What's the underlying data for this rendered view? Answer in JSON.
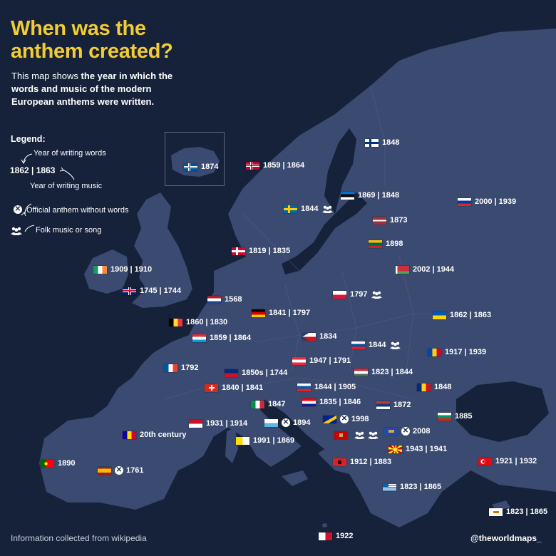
{
  "title_line1": "When was the",
  "title_line2": "anthem created?",
  "subtitle_prefix": "This map shows ",
  "subtitle_bold": "the year in which the words and music of the modern European anthems were written.",
  "legend": {
    "heading": "Legend:",
    "words_text": "Year of writing words",
    "example": "1862 | 1863",
    "music_text": "Year of writing music",
    "no_words_text": "Official anthem without words",
    "folk_text": "Folk music or song"
  },
  "countries": [
    {
      "flag": "iceland",
      "text": "1874"
    },
    {
      "flag": "norway",
      "text": "1859 | 1864"
    },
    {
      "flag": "finland",
      "text": "1848"
    },
    {
      "flag": "estonia",
      "text": "1869 | 1848"
    },
    {
      "flag": "russia",
      "text": "2000 | 1939"
    },
    {
      "flag": "sweden",
      "text": "1844",
      "folk": true
    },
    {
      "flag": "latvia",
      "text": "1873"
    },
    {
      "flag": "lithuania",
      "text": "1898"
    },
    {
      "flag": "denmark",
      "text": "1819 | 1835"
    },
    {
      "flag": "belarus",
      "text": "2002 | 1944"
    },
    {
      "flag": "ireland",
      "text": "1909 | 1910"
    },
    {
      "flag": "uk",
      "text": "1745 | 1744"
    },
    {
      "flag": "netherlands",
      "text": "1568"
    },
    {
      "flag": "poland",
      "text": "1797",
      "folk": true
    },
    {
      "flag": "germany",
      "text": "1841 | 1797"
    },
    {
      "flag": "ukraine",
      "text": "1862 | 1863"
    },
    {
      "flag": "belgium",
      "text": "1860 | 1830"
    },
    {
      "flag": "luxembourg",
      "text": "1859 | 1864"
    },
    {
      "flag": "czechia",
      "text": "1834"
    },
    {
      "flag": "slovakia",
      "text": "1844",
      "folk": true
    },
    {
      "flag": "moldova",
      "text": "1917 | 1939"
    },
    {
      "flag": "france",
      "text": "1792"
    },
    {
      "flag": "austria",
      "text": "1947 | 1791"
    },
    {
      "flag": "liechtenstein",
      "text": "1850s | 1744"
    },
    {
      "flag": "hungary",
      "text": "1823 | 1844"
    },
    {
      "flag": "switzerland",
      "text": "1840 | 1841"
    },
    {
      "flag": "slovenia",
      "text": "1844 | 1905"
    },
    {
      "flag": "romania",
      "text": "1848"
    },
    {
      "flag": "italy",
      "text": "1847"
    },
    {
      "flag": "croatia",
      "text": "1835 | 1846"
    },
    {
      "flag": "serbia",
      "text": "1872"
    },
    {
      "flag": "bulgaria",
      "text": "1885"
    },
    {
      "flag": "monaco",
      "text": "1931 | 1914"
    },
    {
      "flag": "sanmarino",
      "text": "1894",
      "no_words": true
    },
    {
      "flag": "bosnia",
      "text": "1998",
      "no_words": true
    },
    {
      "flag": "andorra",
      "text": "20th century"
    },
    {
      "flag": "vatican",
      "text": "1991 | 1869"
    },
    {
      "flag": "montenegro",
      "text": "",
      "folk": true,
      "folk2": true
    },
    {
      "flag": "kosovo",
      "text": "2008",
      "no_words": true
    },
    {
      "flag": "northmacedonia",
      "text": "1943 | 1941"
    },
    {
      "flag": "portugal",
      "text": "1890"
    },
    {
      "flag": "spain",
      "text": "1761",
      "no_words": true
    },
    {
      "flag": "albania",
      "text": "1912 | 1883"
    },
    {
      "flag": "turkey",
      "text": "1921 | 1932"
    },
    {
      "flag": "greece",
      "text": "1823 | 1865"
    },
    {
      "flag": "cyprus",
      "text": "1823 | 1865"
    },
    {
      "flag": "malta",
      "text": "1922"
    }
  ],
  "footer_left": "Information collected from wikipedia",
  "footer_right": "@theworldmaps_",
  "colors": {
    "background": "#16213a",
    "land": "#3a4a70",
    "title": "#f2cc35"
  }
}
